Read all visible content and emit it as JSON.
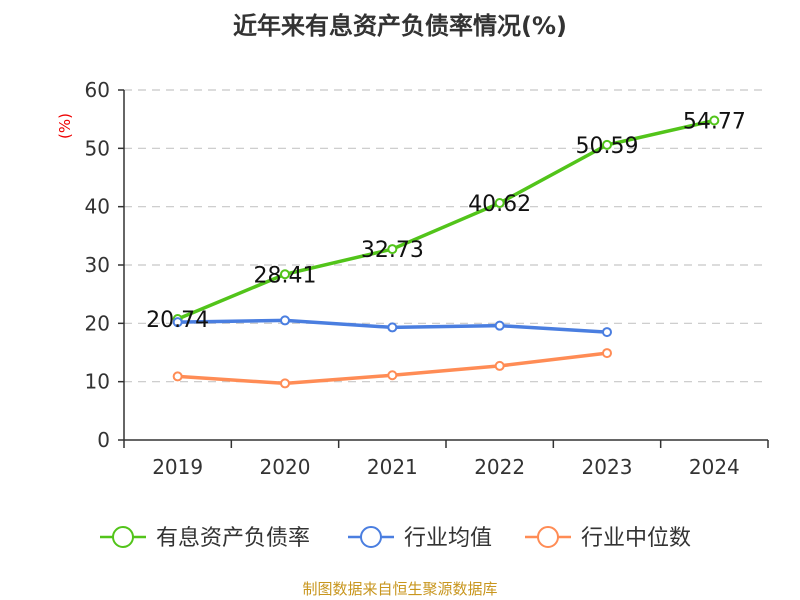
{
  "chart_data": {
    "type": "line",
    "title": "近年来有息资产负债率情况(%)",
    "ylabel": "(%)",
    "xlabel": "",
    "categories": [
      "2019",
      "2020",
      "2021",
      "2022",
      "2023",
      "2024"
    ],
    "ylim": [
      0,
      60
    ],
    "yticks": [
      0,
      10,
      20,
      30,
      40,
      50,
      60
    ],
    "grid": true,
    "legend_position": "bottom",
    "series": [
      {
        "name": "有息资产负债率",
        "color": "#52c41a",
        "values": [
          20.74,
          28.41,
          32.73,
          40.62,
          50.59,
          54.77
        ],
        "labels": [
          "20.74",
          "28.41",
          "32.73",
          "40.62",
          "50.59",
          "54.77"
        ]
      },
      {
        "name": "行业均值",
        "color": "#4a7ee0",
        "values": [
          20.2,
          20.5,
          19.3,
          19.6,
          18.5,
          null
        ]
      },
      {
        "name": "行业中位数",
        "color": "#ff8c55",
        "values": [
          10.9,
          9.7,
          11.1,
          12.7,
          14.9,
          null
        ]
      }
    ]
  },
  "source": "制图数据来自恒生聚源数据库"
}
